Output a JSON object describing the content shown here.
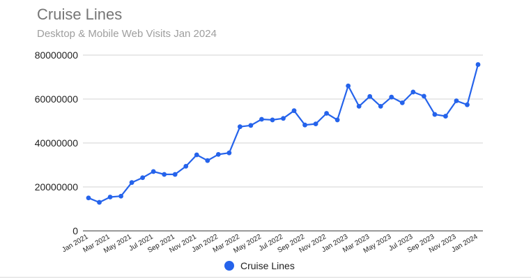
{
  "chart_data": {
    "type": "line",
    "title": "Cruise Lines",
    "subtitle": "Desktop & Mobile Web Visits Jan 2024",
    "xlabel": "",
    "ylabel": "",
    "ylim": [
      0,
      80000000
    ],
    "yticks": [
      "0",
      "20000000",
      "40000000",
      "60000000",
      "80000000"
    ],
    "grid": true,
    "legend_position": "bottom",
    "x": [
      "Jan 2021",
      "Feb 2021",
      "Mar 2021",
      "Apr 2021",
      "May 2021",
      "Jun 2021",
      "Jul 2021",
      "Aug 2021",
      "Sep 2021",
      "Oct 2021",
      "Nov 2021",
      "Dec 2021",
      "Jan 2022",
      "Feb 2022",
      "Mar 2022",
      "Apr 2022",
      "May 2022",
      "Jun 2022",
      "Jul 2022",
      "Aug 2022",
      "Sep 2022",
      "Oct 2022",
      "Nov 2022",
      "Dec 2022",
      "Jan 2023",
      "Feb 2023",
      "Mar 2023",
      "Apr 2023",
      "May 2023",
      "Jun 2023",
      "Jul 2023",
      "Aug 2023",
      "Sep 2023",
      "Oct 2023",
      "Nov 2023",
      "Dec 2023",
      "Jan 2024"
    ],
    "xticks": [
      "Jan 2021",
      "Mar 2021",
      "May 2021",
      "Jul 2021",
      "Sep 2021",
      "Nov 2021",
      "Jan 2022",
      "Mar 2022",
      "May 2022",
      "Jul 2022",
      "Sep 2022",
      "Nov 2022",
      "Jan 2023",
      "Mar 2023",
      "May 2023",
      "Jul 2023",
      "Sep 2023",
      "Nov 2023",
      "Jan 2024"
    ],
    "series": [
      {
        "name": "Cruise Lines",
        "color": "#2563eb",
        "values": [
          15000000,
          13000000,
          15400000,
          15800000,
          22000000,
          24200000,
          27000000,
          25700000,
          25700000,
          29400000,
          34600000,
          32000000,
          34800000,
          35500000,
          47400000,
          48000000,
          50800000,
          50500000,
          51200000,
          54700000,
          48200000,
          48700000,
          53500000,
          50500000,
          66000000,
          56700000,
          61200000,
          56700000,
          60900000,
          58300000,
          63200000,
          61300000,
          53000000,
          52200000,
          59200000,
          57400000,
          75700000
        ]
      }
    ]
  }
}
